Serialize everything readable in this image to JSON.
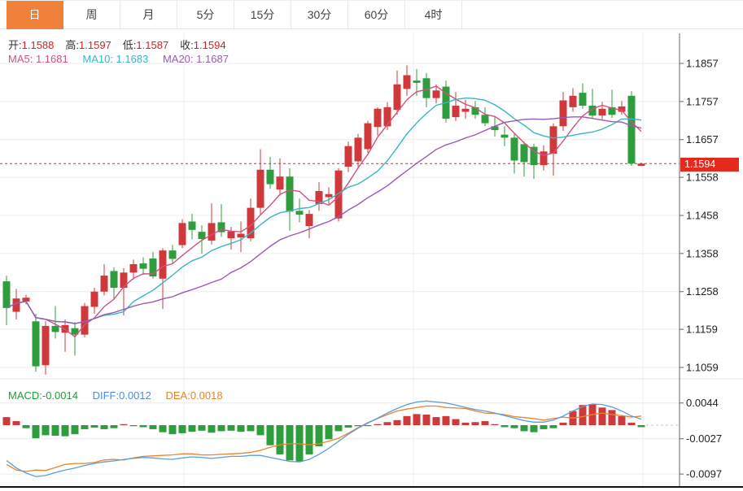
{
  "tabs": [
    {
      "label": "日",
      "active": true
    },
    {
      "label": "周",
      "active": false
    },
    {
      "label": "月",
      "active": false
    },
    {
      "label": "5分",
      "active": false
    },
    {
      "label": "15分",
      "active": false
    },
    {
      "label": "30分",
      "active": false
    },
    {
      "label": "60分",
      "active": false
    },
    {
      "label": "4时",
      "active": false
    }
  ],
  "ohlc": {
    "open_label": "开:",
    "open": "1.1588",
    "high_label": "高:",
    "high": "1.1597",
    "low_label": "低:",
    "low": "1.1587",
    "close_label": "收:",
    "close": "1.1594"
  },
  "ma": {
    "ma5_label": "MA5:",
    "ma5": "1.1681",
    "ma10_label": "MA10:",
    "ma10": "1.1683",
    "ma20_label": "MA20:",
    "ma20": "1.1687"
  },
  "macd_labels": {
    "macd_label": "MACD:",
    "macd": "-0.0014",
    "diff_label": "DIFF:",
    "diff": "0.0012",
    "dea_label": "DEA:",
    "dea": "0.0018"
  },
  "current_price": "1.1594",
  "colors": {
    "up": "#d0393b",
    "down": "#2e9d3e",
    "tab_active": "#f0813a",
    "ma5": "#d2527f",
    "ma10": "#3ab5c2",
    "ma20": "#9b59b6",
    "diff": "#5b9fd8",
    "dea": "#e8842c",
    "price_line": "#d03030",
    "badge": "#e42a1d",
    "grid": "#ececec",
    "axis": "#555555"
  },
  "chart_data": [
    {
      "type": "candlestick",
      "title": "",
      "legend_position": "none",
      "grid": true,
      "y_ticks": [
        "1.1857",
        "1.1757",
        "1.1657",
        "1.1558",
        "1.1458",
        "1.1358",
        "1.1258",
        "1.1159",
        "1.1059"
      ],
      "y_range": [
        1.1857,
        1.1059
      ],
      "current_price_line": 1.1594,
      "ma_overlays": [
        {
          "name": "MA5",
          "window": 5
        },
        {
          "name": "MA10",
          "window": 10
        },
        {
          "name": "MA20",
          "window": 20
        }
      ],
      "candles_ohlc": [
        [
          1.1285,
          1.13,
          1.117,
          1.1215
        ],
        [
          1.1205,
          1.1265,
          1.1185,
          1.124
        ],
        [
          1.1232,
          1.125,
          1.1225,
          1.1242
        ],
        [
          1.118,
          1.12,
          1.1048,
          1.1062
        ],
        [
          1.1065,
          1.118,
          1.104,
          1.1168
        ],
        [
          1.1168,
          1.122,
          1.1135,
          1.1152
        ],
        [
          1.115,
          1.1185,
          1.11,
          1.117
        ],
        [
          1.1162,
          1.1178,
          1.109,
          1.1145
        ],
        [
          1.1145,
          1.1228,
          1.1138,
          1.122
        ],
        [
          1.1218,
          1.1268,
          1.12,
          1.1258
        ],
        [
          1.1258,
          1.133,
          1.1248,
          1.13
        ],
        [
          1.1312,
          1.1322,
          1.124,
          1.1268
        ],
        [
          1.1268,
          1.132,
          1.1195,
          1.1308
        ],
        [
          1.1308,
          1.1342,
          1.129,
          1.133
        ],
        [
          1.1332,
          1.1348,
          1.1302,
          1.1318
        ],
        [
          1.1345,
          1.1362,
          1.1292,
          1.1298
        ],
        [
          1.1292,
          1.1372,
          1.1212,
          1.1366
        ],
        [
          1.1366,
          1.138,
          1.133,
          1.1344
        ],
        [
          1.138,
          1.1448,
          1.1372,
          1.1438
        ],
        [
          1.1442,
          1.1462,
          1.1395,
          1.142
        ],
        [
          1.1415,
          1.1432,
          1.1358,
          1.1396
        ],
        [
          1.1392,
          1.149,
          1.1382,
          1.1438
        ],
        [
          1.144,
          1.1488,
          1.1402,
          1.1414
        ],
        [
          1.1398,
          1.1428,
          1.1368,
          1.1416
        ],
        [
          1.14,
          1.1442,
          1.1362,
          1.141
        ],
        [
          1.1398,
          1.1502,
          1.139,
          1.1478
        ],
        [
          1.1478,
          1.1632,
          1.1458,
          1.1578
        ],
        [
          1.1578,
          1.1612,
          1.1528,
          1.154
        ],
        [
          1.1526,
          1.1608,
          1.151,
          1.156
        ],
        [
          1.156,
          1.1582,
          1.1418,
          1.1468
        ],
        [
          1.147,
          1.1502,
          1.144,
          1.146
        ],
        [
          1.143,
          1.1472,
          1.1398,
          1.1462
        ],
        [
          1.1488,
          1.1545,
          1.147,
          1.1522
        ],
        [
          1.1506,
          1.1532,
          1.1488,
          1.1514
        ],
        [
          1.145,
          1.1582,
          1.1442,
          1.1576
        ],
        [
          1.1586,
          1.1652,
          1.1572,
          1.164
        ],
        [
          1.16,
          1.1672,
          1.1585,
          1.1662
        ],
        [
          1.1632,
          1.1706,
          1.1622,
          1.17
        ],
        [
          1.169,
          1.1742,
          1.1668,
          1.1738
        ],
        [
          1.1692,
          1.1755,
          1.1682,
          1.1742
        ],
        [
          1.1735,
          1.1838,
          1.1722,
          1.1802
        ],
        [
          1.179,
          1.1852,
          1.1772,
          1.1826
        ],
        [
          1.1812,
          1.1842,
          1.1772,
          1.1806
        ],
        [
          1.1818,
          1.1832,
          1.1742,
          1.1766
        ],
        [
          1.1766,
          1.1802,
          1.1752,
          1.1786
        ],
        [
          1.1796,
          1.1812,
          1.1702,
          1.1712
        ],
        [
          1.1716,
          1.1782,
          1.1706,
          1.1746
        ],
        [
          1.173,
          1.1762,
          1.1712,
          1.1738
        ],
        [
          1.1742,
          1.1758,
          1.1712,
          1.1722
        ],
        [
          1.1722,
          1.1742,
          1.1692,
          1.17
        ],
        [
          1.1692,
          1.1716,
          1.1665,
          1.1682
        ],
        [
          1.167,
          1.1692,
          1.164,
          1.1662
        ],
        [
          1.1662,
          1.1672,
          1.1568,
          1.1602
        ],
        [
          1.1645,
          1.1652,
          1.156,
          1.1598
        ],
        [
          1.1638,
          1.1646,
          1.1554,
          1.159
        ],
        [
          1.159,
          1.1642,
          1.1576,
          1.1626
        ],
        [
          1.162,
          1.17,
          1.1562,
          1.1692
        ],
        [
          1.1692,
          1.1782,
          1.168,
          1.176
        ],
        [
          1.1742,
          1.1792,
          1.173,
          1.1772
        ],
        [
          1.178,
          1.1805,
          1.1738,
          1.1746
        ],
        [
          1.1746,
          1.179,
          1.1712,
          1.172
        ],
        [
          1.172,
          1.1756,
          1.171,
          1.1738
        ],
        [
          1.1742,
          1.1788,
          1.1714,
          1.1722
        ],
        [
          1.173,
          1.1758,
          1.1722,
          1.1744
        ],
        [
          1.1772,
          1.1784,
          1.1588,
          1.1594
        ],
        [
          1.1588,
          1.1597,
          1.1587,
          1.1594
        ]
      ]
    },
    {
      "type": "bar",
      "name": "MACD",
      "y_ticks": [
        "0.0044",
        "-0.0027",
        "-0.0097"
      ],
      "bars": [
        0.0016,
        0.0008,
        -0.0006,
        -0.0026,
        -0.002,
        -0.0021,
        -0.0022,
        -0.0018,
        -0.0008,
        -0.0005,
        -0.0008,
        -0.0006,
        0.0002,
        -0.0002,
        -0.0004,
        -0.0008,
        -0.0014,
        -0.0018,
        -0.0016,
        -0.0013,
        -0.0011,
        -0.0015,
        -0.0012,
        -0.0011,
        -0.0013,
        -0.0012,
        -0.002,
        -0.004,
        -0.0058,
        -0.007,
        -0.0072,
        -0.0058,
        -0.0042,
        -0.0028,
        -0.0012,
        -0.0005,
        -0.0002,
        -0.0001,
        0.0002,
        0.0006,
        0.001,
        0.0018,
        0.0022,
        0.0021,
        0.0016,
        0.0018,
        0.0012,
        0.0005,
        0.0006,
        0.0008,
        0.0002,
        -0.0004,
        -0.0006,
        -0.0012,
        -0.0014,
        -0.0008,
        -0.0006,
        0.0005,
        0.0028,
        0.004,
        0.0042,
        0.0035,
        0.003,
        0.0018,
        0.0005,
        -0.0004
      ],
      "diff_line": [
        -0.007,
        -0.0085,
        -0.0095,
        -0.0102,
        -0.01,
        -0.0094,
        -0.0089,
        -0.0085,
        -0.008,
        -0.0076,
        -0.0073,
        -0.0071,
        -0.0068,
        -0.0066,
        -0.0064,
        -0.0065,
        -0.0067,
        -0.0068,
        -0.0065,
        -0.0063,
        -0.0064,
        -0.0066,
        -0.0064,
        -0.0062,
        -0.0062,
        -0.006,
        -0.006,
        -0.0064,
        -0.0068,
        -0.0072,
        -0.0073,
        -0.0068,
        -0.0058,
        -0.0046,
        -0.0032,
        -0.0018,
        -0.0006,
        0.0004,
        0.0014,
        0.0024,
        0.0033,
        0.0041,
        0.0046,
        0.0048,
        0.0046,
        0.0044,
        0.004,
        0.0035,
        0.0031,
        0.0028,
        0.0024,
        0.0019,
        0.0014,
        0.0009,
        0.0006,
        0.0006,
        0.001,
        0.0018,
        0.0028,
        0.0037,
        0.0042,
        0.0041,
        0.0036,
        0.0028,
        0.0018,
        0.0012
      ],
      "dea_line": [
        -0.0078,
        -0.0089,
        -0.0092,
        -0.0089,
        -0.009,
        -0.0084,
        -0.0078,
        -0.0076,
        -0.0076,
        -0.0074,
        -0.0069,
        -0.0068,
        -0.0069,
        -0.0065,
        -0.0062,
        -0.0061,
        -0.006,
        -0.0059,
        -0.0057,
        -0.0057,
        -0.0059,
        -0.0059,
        -0.0058,
        -0.0057,
        -0.0056,
        -0.0054,
        -0.005,
        -0.0044,
        -0.0039,
        -0.0037,
        -0.0037,
        -0.0039,
        -0.0037,
        -0.0032,
        -0.0026,
        -0.0016,
        -0.0005,
        0.0005,
        0.0013,
        0.0021,
        0.0028,
        0.0032,
        0.0035,
        0.0038,
        0.0038,
        0.0035,
        0.0034,
        0.0033,
        0.0028,
        0.0024,
        0.0023,
        0.0021,
        0.0017,
        0.0015,
        0.0013,
        0.001,
        0.0013,
        0.0016,
        0.0014,
        0.0017,
        0.0021,
        0.0024,
        0.0021,
        0.0019,
        0.0016,
        0.0018
      ]
    }
  ]
}
